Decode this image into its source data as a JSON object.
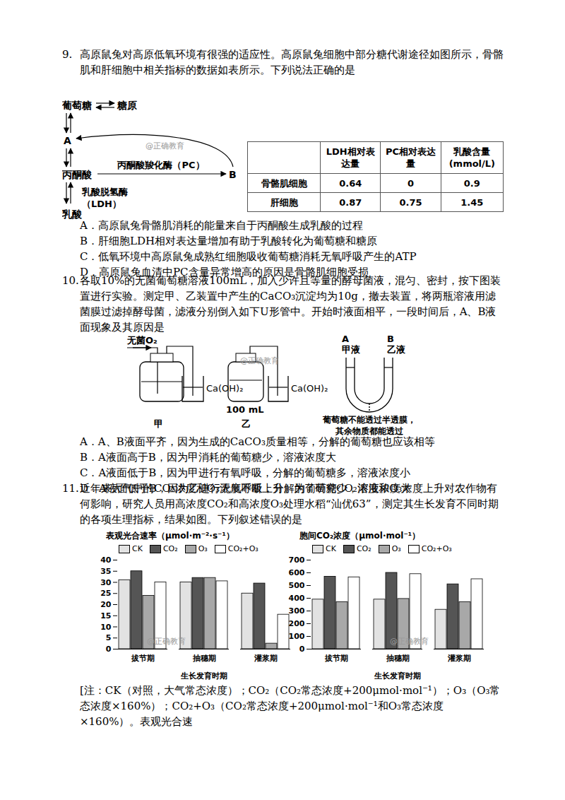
{
  "watermark": "@正确教育",
  "questions": [
    {
      "number": "9.",
      "stem": "高原鼠兔对高原低氧环境有很强的适应性。高原鼠兔细胞中部分糖代谢途径如图所示，骨骼肌和肝细胞中相关指标的数据如表所示。下列说法正确的是",
      "figure": {
        "glucose": "葡萄糖",
        "glycogen": "糖原",
        "a": "A",
        "pyruvate": "丙酮酸",
        "pc_enzyme": "丙酮酸羧化酶（PC）",
        "b": "B",
        "ldh_enzyme": [
          "乳酸脱氢酶",
          "（LDH）"
        ],
        "lactate": "乳酸"
      },
      "table": {
        "header": [
          null,
          "LDH相对表达量",
          "PC相对表达量",
          "乳酸含量(mmol/L)"
        ],
        "rows": [
          [
            "骨骼肌细胞",
            "0.64",
            "0",
            "0.9"
          ],
          [
            "肝细胞",
            "0.87",
            "0.75",
            "1.45"
          ]
        ]
      },
      "options": [
        "A．高原鼠兔骨骼肌消耗的能量来自于丙酮酸生成乳酸的过程",
        "B．肝细胞LDH相对表达量增加有助于乳酸转化为葡萄糖和糖原",
        "C．低氧环境中高原鼠兔成熟红细胞吸收葡萄糖消耗无氧呼吸产生的ATP",
        "D．高原鼠兔血清中PC含量异常增高的原因是骨骼肌细胞受损"
      ]
    },
    {
      "number": "10.",
      "stem": "各取10%的无菌葡萄糖溶液100mL，加入少许且等量的酵母菌液，混匀、密封，按下图装置进行实验。测定甲、乙装置中产生的CaCO₃沉淀均为10g，撤去装置，将两瓶溶液用滤菌膜过滤掉酵母菌，滤液分别倒入如下U形管中。开始时液面相平，一段时间后，A、B液面现象及其原因是",
      "figure": {
        "oxygen": "无菌O₂",
        "limewater": "Ca(OH)₂",
        "jia": "甲",
        "volume": "100 mL",
        "yi": "乙",
        "u_tube": {
          "left": [
            "A",
            "甲液"
          ],
          "right": [
            "B",
            "乙液"
          ],
          "caption": [
            "葡萄糖不能透过半透膜，",
            "其余物质都能透过"
          ]
        }
      },
      "options": [
        "A．A、B液面平齐，因为生成的CaCO₃质量相等，分解的葡萄糖也应该相等",
        "B．A液面高于B，因为甲消耗的葡萄糖少，溶液浓度大",
        "C．A液面低于B，因为甲进行有氧呼吸，分解的葡萄糖多，溶液浓度小",
        "D．A液面低于B，因为乙进行无氧呼吸，分解的葡萄糖少，溶液浓度大"
      ]
    },
    {
      "number": "11.",
      "stem": "近年来大气中的CO₂浓度和O₃浓度不断上升。为了研究CO₂浓度和O₃浓度上升对农作物有何影响，研究人员用高浓度CO₂和高浓度O₃处理水稻“汕优63”，测定其生长发育不同时期的各项生理指标，结果如图。下列叙述错误的是",
      "note": "[注：CK（对照，大气常态浓度）；CO₂（CO₂常态浓度+200μmol·mol⁻¹）；O₃（O₃常态浓度×160%）；CO₂+O₃（CO₂常态浓度+200μmol·mol⁻¹和O₃常态浓度×160%）。表观光合速"
    }
  ],
  "chart_data": [
    {
      "type": "bar",
      "title": "表观光合速率（μmol·m⁻²·s⁻¹）",
      "x_label": "生长发育时期",
      "categories": [
        "拔节期",
        "抽穗期",
        "灌浆期"
      ],
      "series": [
        {
          "name": "CK",
          "color": "#e2e2e2",
          "values": [
            31,
            30,
            25
          ]
        },
        {
          "name": "CO₂",
          "color": "#555555",
          "values": [
            35,
            32,
            29.5
          ]
        },
        {
          "name": "O₃",
          "color": "#a8a8a8",
          "values": [
            24,
            32,
            2.5
          ]
        },
        {
          "name": "CO₂+O₃",
          "color": "#ffffff",
          "values": [
            30,
            30.5,
            15.5
          ]
        }
      ],
      "ylim": [
        0,
        40
      ],
      "yticks": [
        0,
        5,
        10,
        15,
        20,
        25,
        30,
        35,
        40
      ],
      "legend": "top"
    },
    {
      "type": "bar",
      "title": "胞间CO₂浓度（μmol·mol⁻¹）",
      "x_label": "生长发育时期",
      "categories": [
        "拔节期",
        "抽穗期",
        "灌浆期"
      ],
      "series": [
        {
          "name": "CK",
          "color": "#e2e2e2",
          "values": [
            390,
            390,
            310
          ]
        },
        {
          "name": "CO₂",
          "color": "#555555",
          "values": [
            570,
            600,
            510
          ]
        },
        {
          "name": "O₃",
          "color": "#a8a8a8",
          "values": [
            370,
            395,
            370
          ]
        },
        {
          "name": "CO₂+O₃",
          "color": "#ffffff",
          "values": [
            565,
            590,
            550
          ]
        }
      ],
      "ylim": [
        0,
        700
      ],
      "yticks": [
        0,
        100,
        200,
        300,
        400,
        500,
        600,
        700
      ],
      "legend": "top"
    }
  ]
}
